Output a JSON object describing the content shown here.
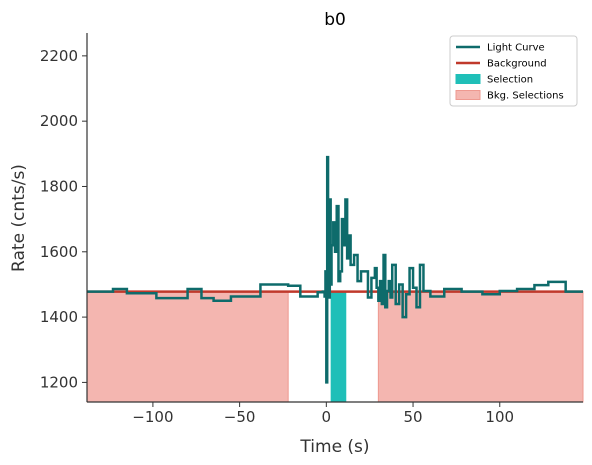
{
  "chart_data": {
    "type": "line",
    "title": "b0",
    "xlabel": "Time (s)",
    "ylabel": "Rate (cnts/s)",
    "xlim": [
      -138,
      148
    ],
    "ylim": [
      1140,
      2270
    ],
    "xticks": [
      -100,
      -50,
      0,
      50,
      100
    ],
    "xtick_labels": [
      "−100",
      "−50",
      "0",
      "50",
      "100"
    ],
    "yticks": [
      1200,
      1400,
      1600,
      1800,
      2000,
      2200
    ],
    "ytick_labels": [
      "1200",
      "1400",
      "1600",
      "1800",
      "2000",
      "2200"
    ],
    "grid": false,
    "legend_position": "top-right",
    "legend": [
      {
        "label": "Light Curve",
        "kind": "line",
        "color": "#0e6b6b"
      },
      {
        "label": "Background",
        "kind": "line",
        "color": "#c0392b"
      },
      {
        "label": "Selection",
        "kind": "patch",
        "color": "#1fbfb8"
      },
      {
        "label": "Bkg. Selections",
        "kind": "patch",
        "color": "#f4b6b0",
        "edge": "#ee9990"
      }
    ],
    "background": {
      "value": 1478,
      "color": "#c0392b"
    },
    "selection": {
      "range": [
        2.5,
        11.5
      ],
      "color": "#1fbfb8"
    },
    "bkg_selections": [
      {
        "range": [
          -138,
          -22
        ],
        "color": "#f4b6b0"
      },
      {
        "range": [
          30,
          148
        ],
        "color": "#f4b6b0"
      }
    ],
    "light_curve": {
      "color": "#0e6b6b",
      "x": [
        -138,
        -123,
        -115,
        -98,
        -80,
        -72,
        -65,
        -55,
        -38,
        -22,
        -15,
        -5,
        -2,
        -1,
        -0.5,
        0,
        0.5,
        1,
        1.5,
        2,
        2.5,
        3,
        4,
        5,
        6,
        7,
        8,
        9,
        10,
        11,
        12,
        13,
        14,
        16,
        18,
        20,
        24,
        26,
        28,
        29,
        30,
        31,
        32,
        33,
        34,
        35,
        36,
        37,
        38,
        40,
        42,
        44,
        46,
        48,
        50,
        52,
        54,
        56,
        60,
        68,
        78,
        90,
        100,
        110,
        120,
        128,
        138,
        148
      ],
      "y": [
        1478,
        1486,
        1473,
        1458,
        1486,
        1458,
        1450,
        1463,
        1500,
        1496,
        1463,
        1476,
        1478,
        1463,
        1540,
        1200,
        1890,
        1620,
        1460,
        1760,
        1500,
        1620,
        1690,
        1600,
        1740,
        1510,
        1540,
        1700,
        1620,
        1760,
        1580,
        1650,
        1560,
        1590,
        1510,
        1540,
        1460,
        1520,
        1550,
        1490,
        1450,
        1510,
        1440,
        1590,
        1430,
        1480,
        1510,
        1460,
        1560,
        1440,
        1500,
        1400,
        1470,
        1550,
        1490,
        1430,
        1560,
        1480,
        1463,
        1486,
        1478,
        1470,
        1480,
        1486,
        1498,
        1508,
        1478,
        1478
      ]
    }
  }
}
